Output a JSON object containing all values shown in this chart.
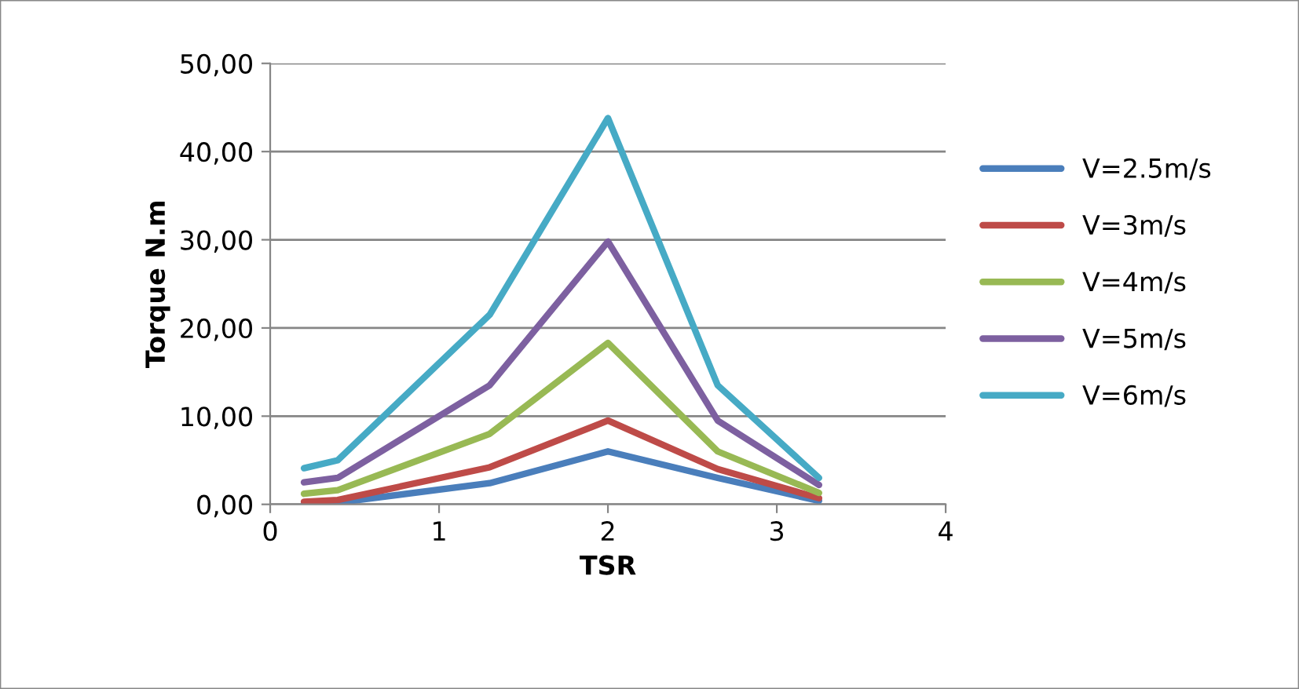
{
  "chart_data": {
    "type": "line",
    "xlabel": "TSR",
    "ylabel": "Torque N.m",
    "x": [
      0.2,
      0.4,
      1.3,
      2.0,
      2.65,
      3.25
    ],
    "series": [
      {
        "name": "V=2.5m/s",
        "color": "#4a7ebb",
        "values": [
          0.1,
          0.2,
          2.4,
          6.0,
          3.0,
          0.4
        ]
      },
      {
        "name": "V=3m/s",
        "color": "#be4b48",
        "values": [
          0.3,
          0.5,
          4.2,
          9.5,
          4.0,
          0.7
        ]
      },
      {
        "name": "V=4m/s",
        "color": "#98b954",
        "values": [
          1.2,
          1.6,
          8.0,
          18.3,
          6.0,
          1.3
        ]
      },
      {
        "name": "V=5m/s",
        "color": "#7d60a0",
        "values": [
          2.5,
          3.0,
          13.5,
          29.8,
          9.5,
          2.2
        ]
      },
      {
        "name": "V=6m/s",
        "color": "#46aac5",
        "values": [
          4.1,
          5.0,
          21.5,
          43.8,
          13.5,
          3.0
        ]
      }
    ],
    "xlim": [
      0,
      4
    ],
    "xticks": [
      0,
      1,
      2,
      3,
      4
    ],
    "ylim": [
      0,
      50
    ],
    "yticks": [
      {
        "value": 0,
        "label": "0,00"
      },
      {
        "value": 10,
        "label": "10,00"
      },
      {
        "value": 20,
        "label": "20,00"
      },
      {
        "value": 30,
        "label": "30,00"
      },
      {
        "value": 40,
        "label": "40,00"
      },
      {
        "value": 50,
        "label": "50,00"
      }
    ],
    "grid": "y",
    "legend": "right",
    "marker": "none",
    "line_style": "solid"
  }
}
